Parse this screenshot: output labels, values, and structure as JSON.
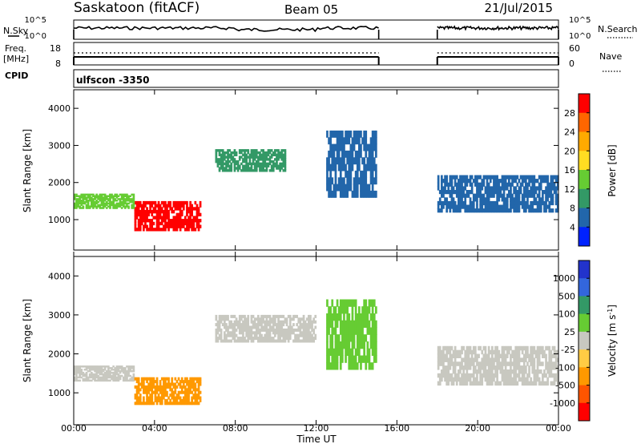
{
  "header": {
    "station": "Saskatoon (fitACF)",
    "beam": "Beam 05",
    "date": "21/Jul/2015"
  },
  "panels": {
    "sky": {
      "left_label": "N.Sky",
      "right_label": "N.Search",
      "left_ticks": [
        "10^5",
        "10^0"
      ],
      "right_ticks": [
        "10^5",
        "10^0"
      ]
    },
    "freq": {
      "left_label_line1": "Freq.",
      "left_label_line2": "[MHz]",
      "right_label": "Nave",
      "left_ticks": [
        "18",
        "8"
      ],
      "right_ticks": [
        "60",
        "0"
      ]
    },
    "cpid": {
      "label": "CPID",
      "text": "ulfscon -3350"
    }
  },
  "chart_data": [
    {
      "type": "heatmap",
      "name": "power",
      "ylabel": "Slant Range [km]",
      "ylim": [
        180,
        4500
      ],
      "yticks": [
        1000,
        2000,
        3000,
        4000
      ],
      "xlim": [
        0,
        24
      ],
      "colorbar": {
        "label": "Power [dB]",
        "ticks": [
          "28",
          "24",
          "20",
          "16",
          "12",
          "8",
          "4"
        ],
        "colors": [
          "#ff0000",
          "#ff6600",
          "#ffaa00",
          "#ffdd22",
          "#66cc33",
          "#339966",
          "#2266aa",
          "#0022ff"
        ]
      },
      "data_gap": [
        15.1,
        18.0
      ],
      "features": [
        {
          "t0": 3.0,
          "t1": 6.3,
          "r0": 700,
          "r1": 1500,
          "level": "28",
          "color": "#ff0000"
        },
        {
          "t0": 0.0,
          "t1": 3.0,
          "r0": 1300,
          "r1": 1700,
          "level": "12",
          "color": "#66cc33"
        },
        {
          "t0": 7.0,
          "t1": 10.5,
          "r0": 2300,
          "r1": 2900,
          "level": "12",
          "color": "#339966"
        },
        {
          "t0": 12.5,
          "t1": 15.0,
          "r0": 1600,
          "r1": 3400,
          "level": "8",
          "color": "#2266aa"
        },
        {
          "t0": 18.0,
          "t1": 24.0,
          "r0": 1200,
          "r1": 2200,
          "level": "8",
          "color": "#2266aa"
        }
      ]
    },
    {
      "type": "heatmap",
      "name": "velocity",
      "ylabel": "Slant Range [km]",
      "ylim": [
        180,
        4500
      ],
      "yticks": [
        1000,
        2000,
        3000,
        4000
      ],
      "xlim": [
        0,
        24
      ],
      "xlabel": "Time UT",
      "xticks": [
        "00:00",
        "04:00",
        "08:00",
        "12:00",
        "16:00",
        "20:00",
        "00:00"
      ],
      "colorbar": {
        "label": "Velocity [m s^-1]",
        "ticks": [
          "1000",
          "500",
          "100",
          "25",
          "-25",
          "-100",
          "-500",
          "-1000"
        ],
        "colors": [
          "#2233cc",
          "#3366dd",
          "#339966",
          "#66cc33",
          "#c8c8c0",
          "#ffcc44",
          "#ff9900",
          "#ff5500",
          "#ff0000"
        ]
      },
      "data_gap": [
        15.1,
        18.0
      ],
      "features": [
        {
          "t0": 0.0,
          "t1": 3.0,
          "r0": 1300,
          "r1": 1700,
          "level": "25",
          "color": "#c8c8c0"
        },
        {
          "t0": 3.0,
          "t1": 6.3,
          "r0": 700,
          "r1": 1400,
          "level": "-500",
          "color": "#ff9900"
        },
        {
          "t0": 7.0,
          "t1": 12.0,
          "r0": 2300,
          "r1": 3000,
          "level": "25",
          "color": "#c8c8c0"
        },
        {
          "t0": 12.5,
          "t1": 15.0,
          "r0": 1600,
          "r1": 3400,
          "level": "100",
          "color": "#66cc33"
        },
        {
          "t0": 18.0,
          "t1": 24.0,
          "r0": 1200,
          "r1": 2200,
          "level": "25",
          "color": "#c8c8c0"
        }
      ]
    }
  ]
}
